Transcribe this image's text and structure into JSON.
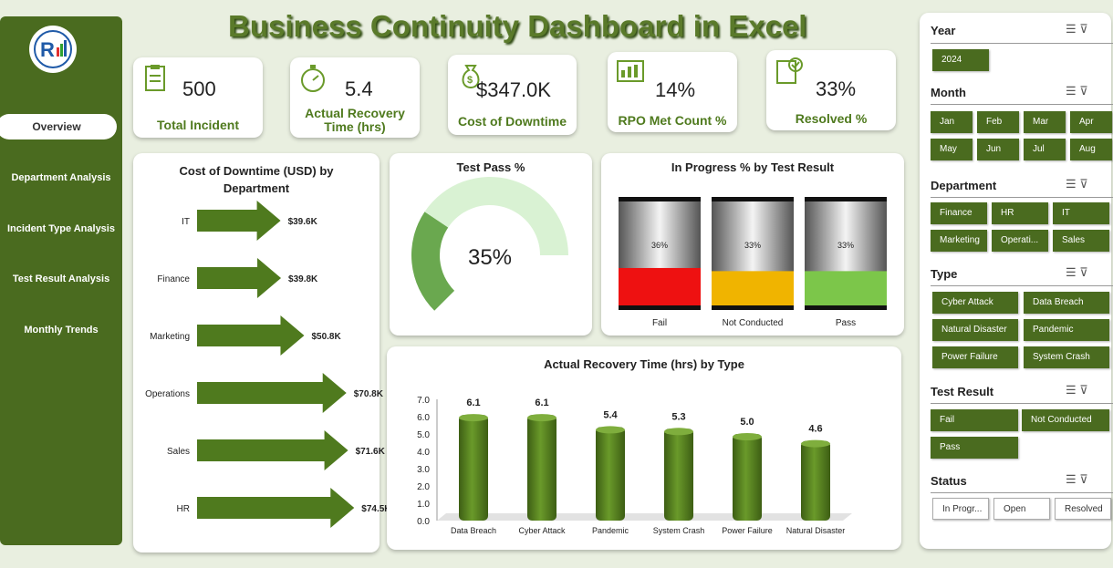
{
  "header": {
    "title": "Business Continuity Dashboard in Excel"
  },
  "sidebar": {
    "items": [
      {
        "label": "Overview",
        "active": true
      },
      {
        "label": "Department Analysis"
      },
      {
        "label": "Incident Type Analysis"
      },
      {
        "label": "Test Result Analysis"
      },
      {
        "label": "Monthly Trends"
      }
    ]
  },
  "kpis": [
    {
      "value": "500",
      "label": "Total Incident",
      "icon": "clipboard-icon"
    },
    {
      "value": "5.4",
      "label": "Actual Recovery Time (hrs)",
      "icon": "stopwatch-icon"
    },
    {
      "value": "$347.0K",
      "label": "Cost of Downtime",
      "icon": "money-bag-icon"
    },
    {
      "value": "14%",
      "label": "RPO Met Count %",
      "icon": "dashboard-icon"
    },
    {
      "value": "33%",
      "label": "Resolved %",
      "icon": "checklist-icon"
    }
  ],
  "colors": {
    "primary": "#4a6b1f",
    "accent": "#6a9a2a",
    "fail": "#ee1111",
    "not_conducted": "#f0b400",
    "pass": "#7cc64a"
  },
  "charts": {
    "downtime": {
      "title": "Cost of Downtime (USD) by Department"
    },
    "test_pass": {
      "title": "Test Pass %",
      "value_label": "35%"
    },
    "in_progress": {
      "title": "In Progress % by Test Result"
    },
    "recovery": {
      "title": "Actual Recovery Time (hrs) by Type"
    }
  },
  "chart_data": [
    {
      "type": "bar",
      "orientation": "horizontal",
      "title": "Cost of Downtime (USD) by Department",
      "categories": [
        "IT",
        "Finance",
        "Marketing",
        "Operations",
        "Sales",
        "HR"
      ],
      "values": [
        39.6,
        39.8,
        50.8,
        70.8,
        71.6,
        74.5
      ],
      "data_labels": [
        "$39.6K",
        "$39.8K",
        "$50.8K",
        "$70.8K",
        "$71.6K",
        "$74.5K"
      ]
    },
    {
      "type": "pie",
      "title": "Test Pass %",
      "values": [
        35,
        65
      ],
      "center_label": "35%"
    },
    {
      "type": "bar",
      "title": "In Progress % by Test Result",
      "categories": [
        "Fail",
        "Not Conducted",
        "Pass"
      ],
      "values": [
        36,
        33,
        33
      ],
      "data_labels": [
        "36%",
        "33%",
        "33%"
      ],
      "ylim": [
        0,
        100
      ]
    },
    {
      "type": "bar",
      "title": "Actual Recovery Time (hrs) by Type",
      "categories": [
        "Data Breach",
        "Cyber Attack",
        "Pandemic",
        "System Crash",
        "Power Failure",
        "Natural Disaster"
      ],
      "values": [
        6.1,
        6.1,
        5.4,
        5.3,
        5.0,
        4.6
      ],
      "yticks": [
        "0.0",
        "1.0",
        "2.0",
        "3.0",
        "4.0",
        "5.0",
        "6.0",
        "7.0"
      ],
      "ylim": [
        0,
        7
      ]
    }
  ],
  "slicers": {
    "year": {
      "title": "Year",
      "items": [
        "2024"
      ]
    },
    "month": {
      "title": "Month",
      "items": [
        "Jan",
        "Feb",
        "Mar",
        "Apr",
        "May",
        "Jun",
        "Jul",
        "Aug"
      ]
    },
    "department": {
      "title": "Department",
      "items": [
        "Finance",
        "HR",
        "IT",
        "Marketing",
        "Operati...",
        "Sales"
      ]
    },
    "type": {
      "title": "Type",
      "items": [
        "Cyber Attack",
        "Data Breach",
        "Natural Disaster",
        "Pandemic",
        "Power Failure",
        "System Crash"
      ]
    },
    "test_result": {
      "title": "Test Result",
      "items": [
        "Fail",
        "Not Conducted",
        "Pass"
      ]
    },
    "status": {
      "title": "Status",
      "items": [
        "In Progr...",
        "Open",
        "Resolved"
      ]
    }
  }
}
